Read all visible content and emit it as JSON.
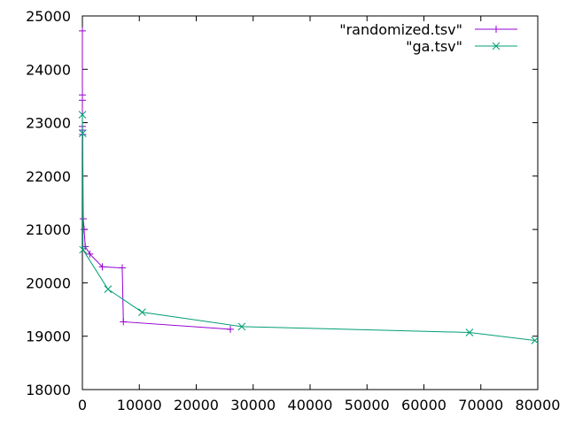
{
  "chart_data": {
    "type": "line",
    "title": "",
    "xlabel": "",
    "ylabel": "",
    "xlim": [
      0,
      80000
    ],
    "ylim": [
      18000,
      25000
    ],
    "x_ticks": [
      0,
      10000,
      20000,
      30000,
      40000,
      50000,
      60000,
      70000,
      80000
    ],
    "y_ticks": [
      18000,
      19000,
      20000,
      21000,
      22000,
      23000,
      24000,
      25000
    ],
    "grid": false,
    "legend": "top-right",
    "series": [
      {
        "name": "\"randomized.tsv\"",
        "color": "#9400d3",
        "marker": "plus",
        "points": [
          [
            0,
            24720
          ],
          [
            0,
            23520
          ],
          [
            0,
            23420
          ],
          [
            0,
            22930
          ],
          [
            0,
            22860
          ],
          [
            50,
            22780
          ],
          [
            150,
            21200
          ],
          [
            300,
            21000
          ],
          [
            500,
            20680
          ],
          [
            1300,
            20540
          ],
          [
            3500,
            20300
          ],
          [
            7000,
            20280
          ],
          [
            7200,
            19270
          ],
          [
            26000,
            19130
          ]
        ]
      },
      {
        "name": "\"ga.tsv\"",
        "color": "#009e73",
        "marker": "x",
        "points": [
          [
            0,
            23150
          ],
          [
            50,
            22800
          ],
          [
            100,
            20620
          ],
          [
            4500,
            19880
          ],
          [
            10500,
            19450
          ],
          [
            28000,
            19180
          ],
          [
            68000,
            19070
          ],
          [
            79500,
            18920
          ]
        ]
      }
    ]
  }
}
